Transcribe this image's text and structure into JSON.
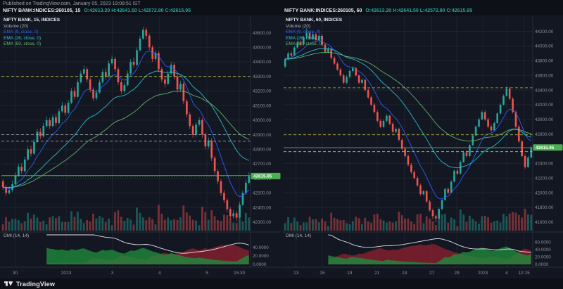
{
  "header": {
    "published": "Published on TradingView.com, January 05, 2023 19:08:51 IST"
  },
  "panels": [
    {
      "symbol": "NIFTY BANK:INDICES:260105, 15",
      "ohlc": "O:42613.20 H:42641.50 L:42572.80 C:42615.95"
    },
    {
      "symbol": "NIFTY BANK:INDICES:260105, 60",
      "ohlc": "O:42613.20 H:42641.50 L:42572.80 C:42615.95"
    }
  ],
  "footer": {
    "brand": "TradingView"
  },
  "colors": {
    "background": "#131722",
    "up": "#26a69a",
    "down": "#ef5350",
    "ema9": "#2962ff",
    "ema26": "#26c6da",
    "ema50": "#66bb6a",
    "badge": "#4caf50",
    "adx": "#e0e3eb",
    "di_plus": "#1f8a3c",
    "di_minus": "#8a2030",
    "level_yellow": "#b2b43e",
    "level_gray": "#b2b5be"
  },
  "chart_data": [
    {
      "type": "candlestick",
      "title": "NIFTY BANK, 15, INDICES",
      "interval": "15",
      "legend": {
        "title": "NIFTY BANK, 15, INDICES",
        "volume": "Volume (20)",
        "ema9": "EMA (9, close, 0)",
        "ema26": "EMA (26, close, 0)",
        "ema50": "EMA (50, close, 0)",
        "dmi": "DMI (14, 14)"
      },
      "close": 42615.95,
      "close_label": "42615.95",
      "price_axis": {
        "min": 42280,
        "max": 43680,
        "ticks": [
          "43600.00",
          "43500.00",
          "43400.00",
          "43300.00",
          "43200.00",
          "43100.00",
          "43000.00",
          "42900.00",
          "42800.00",
          "42700.00",
          "42600.00",
          "42500.00",
          "42400.00",
          "42300.00"
        ]
      },
      "dmi_axis": {
        "max": 70,
        "ticks": [
          "40.0000",
          "20.0000",
          "0.0000"
        ]
      },
      "time_axis": [
        {
          "label": "30",
          "x": 0.055
        },
        {
          "label": "2023",
          "x": 0.26
        },
        {
          "label": "3",
          "x": 0.445
        },
        {
          "label": "4",
          "x": 0.635
        },
        {
          "label": "5",
          "x": 0.825
        },
        {
          "label": "15:30",
          "x": 0.955
        }
      ],
      "levels": [
        {
          "value": 43300,
          "color": "#b2b43e",
          "style": "dashed"
        },
        {
          "value": 42900,
          "color": "#b2b5be",
          "style": "dashed"
        },
        {
          "value": 42855,
          "color": "#b2b5be",
          "style": "dashed"
        },
        {
          "value": 42620,
          "color": "#4caf50",
          "style": "solid"
        }
      ],
      "candles": [
        [
          42580,
          42595,
          42520,
          42540
        ],
        [
          42540,
          42555,
          42480,
          42500
        ],
        [
          42500,
          42545,
          42490,
          42520
        ],
        [
          42520,
          42585,
          42505,
          42560
        ],
        [
          42560,
          42640,
          42550,
          42620
        ],
        [
          42620,
          42700,
          42610,
          42680
        ],
        [
          42680,
          42705,
          42630,
          42650
        ],
        [
          42650,
          42750,
          42640,
          42730
        ],
        [
          42730,
          42820,
          42720,
          42800
        ],
        [
          42800,
          42825,
          42750,
          42770
        ],
        [
          42770,
          42870,
          42760,
          42850
        ],
        [
          42850,
          42940,
          42840,
          42920
        ],
        [
          42920,
          42945,
          42870,
          42890
        ],
        [
          42890,
          42980,
          42880,
          42960
        ],
        [
          42960,
          43025,
          42950,
          43000
        ],
        [
          43000,
          43015,
          42940,
          42960
        ],
        [
          42960,
          43040,
          42950,
          43020
        ],
        [
          43020,
          43045,
          42960,
          42980
        ],
        [
          42980,
          43080,
          42970,
          43060
        ],
        [
          43060,
          43125,
          43050,
          43100
        ],
        [
          43100,
          43115,
          43030,
          43050
        ],
        [
          43050,
          43140,
          43040,
          43120
        ],
        [
          43120,
          43220,
          43110,
          43200
        ],
        [
          43200,
          43225,
          43140,
          43160
        ],
        [
          43160,
          43280,
          43150,
          43260
        ],
        [
          43260,
          43340,
          43250,
          43320
        ],
        [
          43320,
          43375,
          43310,
          43350
        ],
        [
          43350,
          43365,
          43260,
          43280
        ],
        [
          43280,
          43295,
          43190,
          43210
        ],
        [
          43210,
          43225,
          43130,
          43150
        ],
        [
          43150,
          43210,
          43135,
          43190
        ],
        [
          43190,
          43280,
          43180,
          43260
        ],
        [
          43260,
          43350,
          43250,
          43330
        ],
        [
          43330,
          43355,
          43280,
          43300
        ],
        [
          43300,
          43410,
          43290,
          43390
        ],
        [
          43390,
          43445,
          43380,
          43420
        ],
        [
          43420,
          43435,
          43330,
          43350
        ],
        [
          43350,
          43365,
          43240,
          43260
        ],
        [
          43260,
          43275,
          43180,
          43200
        ],
        [
          43200,
          43260,
          43185,
          43240
        ],
        [
          43240,
          43340,
          43230,
          43320
        ],
        [
          43320,
          43420,
          43310,
          43400
        ],
        [
          43400,
          43430,
          43360,
          43380
        ],
        [
          43380,
          43500,
          43370,
          43480
        ],
        [
          43480,
          43580,
          43470,
          43560
        ],
        [
          43560,
          43640,
          43550,
          43620
        ],
        [
          43620,
          43635,
          43555,
          43580
        ],
        [
          43580,
          43595,
          43480,
          43500
        ],
        [
          43500,
          43515,
          43400,
          43420
        ],
        [
          43420,
          43480,
          43405,
          43460
        ],
        [
          43460,
          43475,
          43330,
          43350
        ],
        [
          43350,
          43365,
          43260,
          43280
        ],
        [
          43280,
          43300,
          43225,
          43250
        ],
        [
          43250,
          43340,
          43240,
          43320
        ],
        [
          43320,
          43400,
          43310,
          43380
        ],
        [
          43380,
          43395,
          43280,
          43300
        ],
        [
          43300,
          43315,
          43190,
          43210
        ],
        [
          43210,
          43270,
          43195,
          43250
        ],
        [
          43250,
          43265,
          43110,
          43130
        ],
        [
          43130,
          43145,
          43020,
          43040
        ],
        [
          43040,
          43055,
          42940,
          42960
        ],
        [
          42960,
          42975,
          42880,
          42900
        ],
        [
          42900,
          42985,
          42885,
          42970
        ],
        [
          42970,
          43020,
          42955,
          43000
        ],
        [
          43000,
          43015,
          42880,
          42900
        ],
        [
          42900,
          42915,
          42800,
          42820
        ],
        [
          42820,
          42880,
          42805,
          42860
        ],
        [
          42860,
          42875,
          42720,
          42740
        ],
        [
          42740,
          42755,
          42630,
          42650
        ],
        [
          42650,
          42665,
          42560,
          42580
        ],
        [
          42580,
          42595,
          42480,
          42500
        ],
        [
          42500,
          42520,
          42430,
          42450
        ],
        [
          42450,
          42465,
          42370,
          42390
        ],
        [
          42390,
          42405,
          42320,
          42340
        ],
        [
          42340,
          42385,
          42325,
          42360
        ],
        [
          42360,
          42375,
          42310,
          42330
        ],
        [
          42330,
          42440,
          42320,
          42420
        ],
        [
          42420,
          42515,
          42410,
          42500
        ],
        [
          42500,
          42590,
          42490,
          42570
        ],
        [
          42570,
          42641,
          42560,
          42616
        ]
      ]
    },
    {
      "type": "candlestick",
      "title": "NIFTY BANK, 60, INDICES",
      "interval": "60",
      "legend": {
        "title": "NIFTY BANK, 60, INDICES",
        "volume": "Volume (20)",
        "ema9": "EMA (9, close, 0)",
        "ema26": "EMA (26, close, 0)",
        "ema50": "EMA (50, close, 0)",
        "dmi": "DMI (14, 14)"
      },
      "close": 42615.95,
      "close_label": "42615.95",
      "price_axis": {
        "min": 41560,
        "max": 44340,
        "ticks": [
          "44200.00",
          "44000.00",
          "43800.00",
          "43600.00",
          "43400.00",
          "43200.00",
          "43000.00",
          "42800.00",
          "42600.00",
          "42400.00",
          "42200.00",
          "42000.00",
          "41800.00",
          "41600.00"
        ]
      },
      "dmi_axis": {
        "max": 80,
        "ticks": [
          "60.0000",
          "40.0000",
          "20.0000",
          "0.0000"
        ]
      },
      "time_axis": [
        {
          "label": "13",
          "x": 0.05
        },
        {
          "label": "15",
          "x": 0.155
        },
        {
          "label": "19",
          "x": 0.265
        },
        {
          "label": "21",
          "x": 0.375
        },
        {
          "label": "23",
          "x": 0.485
        },
        {
          "label": "27",
          "x": 0.595
        },
        {
          "label": "29",
          "x": 0.695
        },
        {
          "label": "2023",
          "x": 0.8
        },
        {
          "label": "4",
          "x": 0.895
        },
        {
          "label": "12:15",
          "x": 0.965
        }
      ],
      "levels": [
        {
          "value": 43430,
          "color": "#b2b43e",
          "style": "dashed"
        },
        {
          "value": 42790,
          "color": "#b2b43e",
          "style": "dashed"
        },
        {
          "value": 42560,
          "color": "#b2b5be",
          "style": "dashed"
        },
        {
          "value": 42615,
          "color": "#4caf50",
          "style": "solid"
        }
      ],
      "candles": [
        [
          43720,
          43840,
          43700,
          43820
        ],
        [
          43820,
          43920,
          43800,
          43900
        ],
        [
          43900,
          43925,
          43850,
          43870
        ],
        [
          43870,
          44000,
          43860,
          43980
        ],
        [
          43980,
          44070,
          43960,
          44050
        ],
        [
          44050,
          44075,
          44000,
          44020
        ],
        [
          44020,
          44140,
          44010,
          44120
        ],
        [
          44120,
          44250,
          44100,
          44180
        ],
        [
          44180,
          44205,
          44080,
          44100
        ],
        [
          44100,
          44190,
          44080,
          44160
        ],
        [
          44160,
          44185,
          44060,
          44080
        ],
        [
          44080,
          44160,
          44060,
          44140
        ],
        [
          44140,
          44165,
          44000,
          44020
        ],
        [
          44020,
          44045,
          43900,
          43920
        ],
        [
          43920,
          43985,
          43900,
          43960
        ],
        [
          43960,
          43980,
          43820,
          43840
        ],
        [
          43840,
          43865,
          43740,
          43760
        ],
        [
          43760,
          43785,
          43660,
          43680
        ],
        [
          43680,
          43705,
          43580,
          43600
        ],
        [
          43600,
          43625,
          43480,
          43500
        ],
        [
          43500,
          43600,
          43480,
          43580
        ],
        [
          43580,
          43680,
          43560,
          43660
        ],
        [
          43660,
          43725,
          43640,
          43700
        ],
        [
          43700,
          43715,
          43580,
          43600
        ],
        [
          43600,
          43615,
          43480,
          43500
        ],
        [
          43500,
          43560,
          43480,
          43540
        ],
        [
          43540,
          43555,
          43380,
          43400
        ],
        [
          43400,
          43425,
          43280,
          43300
        ],
        [
          43300,
          43325,
          43180,
          43200
        ],
        [
          43200,
          43225,
          43080,
          43100
        ],
        [
          43100,
          43125,
          42960,
          42980
        ],
        [
          42980,
          43005,
          42880,
          42900
        ],
        [
          42900,
          43000,
          42880,
          42980
        ],
        [
          42980,
          43070,
          42960,
          43050
        ],
        [
          43050,
          43065,
          42920,
          42940
        ],
        [
          42940,
          42960,
          42810,
          42830
        ],
        [
          42830,
          42890,
          42810,
          42870
        ],
        [
          42870,
          42885,
          42700,
          42720
        ],
        [
          42720,
          42745,
          42580,
          42600
        ],
        [
          42600,
          42625,
          42480,
          42500
        ],
        [
          42500,
          42525,
          42360,
          42380
        ],
        [
          42380,
          42405,
          42260,
          42280
        ],
        [
          42280,
          42305,
          42180,
          42200
        ],
        [
          42200,
          42225,
          42080,
          42100
        ],
        [
          42100,
          42125,
          41960,
          41980
        ],
        [
          41980,
          42040,
          41960,
          42020
        ],
        [
          42020,
          42035,
          41860,
          41880
        ],
        [
          41880,
          41905,
          41740,
          41760
        ],
        [
          41760,
          41785,
          41640,
          41680
        ],
        [
          41680,
          41705,
          41600,
          41650
        ],
        [
          41650,
          41800,
          41640,
          41780
        ],
        [
          41780,
          41920,
          41760,
          41900
        ],
        [
          41900,
          42070,
          41890,
          42050
        ],
        [
          42050,
          42075,
          41980,
          42000
        ],
        [
          42000,
          42170,
          41990,
          42150
        ],
        [
          42150,
          42320,
          42140,
          42300
        ],
        [
          42300,
          42325,
          42240,
          42260
        ],
        [
          42260,
          42440,
          42250,
          42420
        ],
        [
          42420,
          42570,
          42410,
          42550
        ],
        [
          42550,
          42575,
          42480,
          42500
        ],
        [
          42500,
          42670,
          42490,
          42650
        ],
        [
          42650,
          42800,
          42640,
          42780
        ],
        [
          42780,
          42920,
          42770,
          42900
        ],
        [
          42900,
          43020,
          42890,
          43000
        ],
        [
          43000,
          43120,
          42990,
          43100
        ],
        [
          43100,
          43125,
          42980,
          43000
        ],
        [
          43000,
          43025,
          42880,
          42900
        ],
        [
          42900,
          42925,
          42830,
          42850
        ],
        [
          42850,
          42970,
          42840,
          42950
        ],
        [
          42950,
          43100,
          42940,
          43080
        ],
        [
          43080,
          43220,
          43070,
          43200
        ],
        [
          43200,
          43340,
          43190,
          43320
        ],
        [
          43320,
          43450,
          43310,
          43420
        ],
        [
          43420,
          43445,
          43260,
          43280
        ],
        [
          43280,
          43305,
          43080,
          43100
        ],
        [
          43100,
          43125,
          42880,
          42900
        ],
        [
          42900,
          42925,
          42680,
          42700
        ],
        [
          42700,
          42725,
          42480,
          42500
        ],
        [
          42500,
          42525,
          42330,
          42350
        ],
        [
          42350,
          42500,
          42340,
          42480
        ],
        [
          42480,
          42641,
          42470,
          42616
        ]
      ]
    }
  ]
}
